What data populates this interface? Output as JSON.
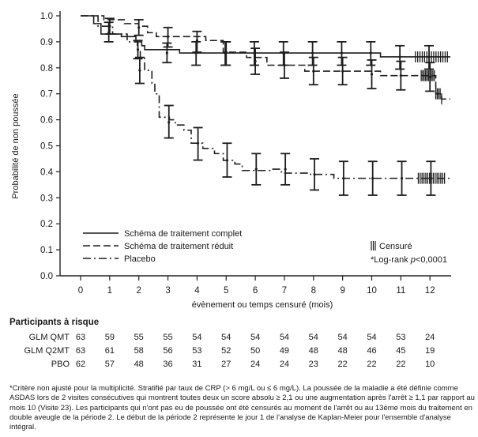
{
  "chart_data": {
    "type": "line",
    "subtype": "kaplan-meier",
    "title": "",
    "xlabel": "évènement ou temps censuré  (mois)",
    "ylabel": "Probabilité de non poussée",
    "xlim": [
      -0.7,
      12.7
    ],
    "ylim": [
      0.0,
      1.0
    ],
    "xticks": [
      "0",
      "1",
      "2",
      "3",
      "4",
      "5",
      "6",
      "7",
      "8",
      "9",
      "10",
      "11",
      "12"
    ],
    "yticks": [
      "0.0",
      "0.1",
      "0.2",
      "0.3",
      "0.4",
      "0.5",
      "0.6",
      "0.7",
      "0.8",
      "0.9",
      "1.0"
    ],
    "grid": false,
    "legend_position": "bottom-left",
    "series": [
      {
        "name": "Schéma de traitement complet",
        "style": "solid",
        "steps": [
          [
            0,
            1.0
          ],
          [
            0.45,
            0.97
          ],
          [
            0.7,
            0.93
          ],
          [
            1.4,
            0.92
          ],
          [
            1.9,
            0.9
          ],
          [
            2.1,
            0.885
          ],
          [
            2.2,
            0.87
          ],
          [
            2.55,
            0.87
          ],
          [
            3.4,
            0.857
          ],
          [
            10.3,
            0.842
          ],
          [
            12.7,
            0.842
          ]
        ],
        "error_bars": [
          [
            1,
            0.935,
            0.9,
            0.975
          ],
          [
            2,
            0.87,
            0.835,
            0.905
          ],
          [
            3,
            0.857,
            0.82,
            0.895
          ],
          [
            4,
            0.857,
            0.81,
            0.9
          ],
          [
            5,
            0.857,
            0.81,
            0.9
          ],
          [
            6,
            0.857,
            0.81,
            0.9
          ],
          [
            7,
            0.857,
            0.81,
            0.9
          ],
          [
            8,
            0.857,
            0.81,
            0.9
          ],
          [
            9,
            0.857,
            0.81,
            0.9
          ],
          [
            10,
            0.857,
            0.81,
            0.9
          ],
          [
            11,
            0.842,
            0.795,
            0.885
          ],
          [
            12,
            0.842,
            0.795,
            0.885
          ]
        ],
        "censor_range": [
          11.5,
          12.6
        ]
      },
      {
        "name": "Schéma de traitement réduit",
        "style": "dashed",
        "steps": [
          [
            0,
            1.0
          ],
          [
            0.8,
            0.985
          ],
          [
            1.5,
            0.97
          ],
          [
            2.0,
            0.96
          ],
          [
            2.3,
            0.935
          ],
          [
            2.6,
            0.92
          ],
          [
            4.3,
            0.905
          ],
          [
            4.9,
            0.86
          ],
          [
            5.7,
            0.84
          ],
          [
            6.4,
            0.81
          ],
          [
            7.7,
            0.787
          ],
          [
            10.3,
            0.77
          ],
          [
            12.2,
            0.7
          ],
          [
            12.4,
            0.68
          ],
          [
            12.7,
            0.68
          ]
        ],
        "error_bars": [
          [
            1,
            0.96,
            0.93,
            0.99
          ],
          [
            2,
            0.955,
            0.925,
            0.985
          ],
          [
            3,
            0.92,
            0.88,
            0.955
          ],
          [
            4,
            0.905,
            0.86,
            0.94
          ],
          [
            5,
            0.86,
            0.81,
            0.9
          ],
          [
            6,
            0.825,
            0.775,
            0.875
          ],
          [
            7,
            0.81,
            0.76,
            0.86
          ],
          [
            8,
            0.787,
            0.735,
            0.84
          ],
          [
            9,
            0.787,
            0.735,
            0.84
          ],
          [
            10,
            0.775,
            0.72,
            0.83
          ],
          [
            11,
            0.77,
            0.715,
            0.825
          ],
          [
            12,
            0.765,
            0.71,
            0.82
          ]
        ],
        "censor_range": [
          11.7,
          12.4
        ]
      },
      {
        "name": "Placebo",
        "style": "dash-dot",
        "steps": [
          [
            0,
            1.0
          ],
          [
            0.6,
            0.96
          ],
          [
            1.1,
            0.93
          ],
          [
            1.6,
            0.9
          ],
          [
            1.95,
            0.87
          ],
          [
            2.05,
            0.84
          ],
          [
            2.2,
            0.79
          ],
          [
            2.45,
            0.74
          ],
          [
            2.55,
            0.7
          ],
          [
            2.7,
            0.61
          ],
          [
            3.05,
            0.6
          ],
          [
            3.25,
            0.58
          ],
          [
            3.55,
            0.56
          ],
          [
            3.8,
            0.51
          ],
          [
            4.2,
            0.49
          ],
          [
            4.6,
            0.47
          ],
          [
            4.9,
            0.444
          ],
          [
            5.3,
            0.43
          ],
          [
            5.55,
            0.405
          ],
          [
            6.5,
            0.41
          ],
          [
            6.9,
            0.395
          ],
          [
            7.9,
            0.39
          ],
          [
            8.7,
            0.375
          ],
          [
            12.7,
            0.375
          ]
        ],
        "error_bars": [
          [
            2,
            0.79,
            0.74,
            0.84
          ],
          [
            3,
            0.59,
            0.53,
            0.655
          ],
          [
            4,
            0.51,
            0.445,
            0.57
          ],
          [
            5,
            0.444,
            0.38,
            0.51
          ],
          [
            6,
            0.41,
            0.35,
            0.47
          ],
          [
            7,
            0.41,
            0.35,
            0.47
          ],
          [
            8,
            0.39,
            0.33,
            0.45
          ],
          [
            9,
            0.375,
            0.31,
            0.44
          ],
          [
            10,
            0.375,
            0.31,
            0.44
          ],
          [
            11,
            0.375,
            0.31,
            0.44
          ],
          [
            12,
            0.375,
            0.31,
            0.44
          ]
        ],
        "censor_range": [
          11.6,
          12.5
        ]
      }
    ],
    "annotations": {
      "censor_label": "Censuré",
      "logrank_prefix": "*Log-rank ",
      "logrank_p": "p",
      "logrank_value": "<0,0001"
    }
  },
  "risk_table": {
    "title": "Participants à risque",
    "rows": [
      {
        "label": "GLM QMT",
        "values": [
          "63",
          "59",
          "55",
          "55",
          "54",
          "54",
          "54",
          "54",
          "54",
          "54",
          "54",
          "53",
          "24"
        ]
      },
      {
        "label": "GLM Q2MT",
        "values": [
          "63",
          "61",
          "58",
          "56",
          "53",
          "52",
          "50",
          "49",
          "48",
          "48",
          "46",
          "45",
          "19"
        ]
      },
      {
        "label": "PBO",
        "values": [
          "62",
          "57",
          "48",
          "36",
          "31",
          "27",
          "24",
          "24",
          "23",
          "22",
          "22",
          "22",
          "10"
        ]
      }
    ]
  },
  "footnote": "*Critère non ajusté pour la multiplicité. Stratifié par taux de CRP (> 6 mg/L ou ≤ 6 mg/L). La poussée de la maladie a été définie comme ASDAS lors de 2 visites consécutives qui montrent toutes deux un score absolu ≥ 2,1 ou une augmentation après l'arrêt ≥ 1,1 par rapport au mois 10 (Visite 23). Les participants qui n'ont pas eu de poussée ont été censurés au moment de l'arrêt ou au 13ème mois du traitement en double aveugle de la période 2. Le début de la période 2 représente le jour 1 de l'analyse de Kaplan-Meier pour l'ensemble d'analyse intégral."
}
